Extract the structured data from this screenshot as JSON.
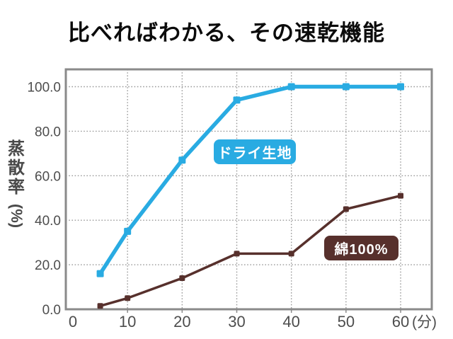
{
  "title": "比べればわかる、その速乾機能",
  "colors": {
    "dry_accent": "#29abe2",
    "cotton_accent": "#57302c",
    "axis_text": "#4d4d4d",
    "plot_border": "#8a8a8a",
    "gridline": "#9a9a9a",
    "title_text": "#0b0b0b",
    "label_text": "#ffffff",
    "background": "#ffffff"
  },
  "y_axis": {
    "label_main": "蒸散率",
    "label_unit": "(%)",
    "tick_labels": [
      "0.0",
      "20.0",
      "40.0",
      "60.0",
      "80.0",
      "100.0"
    ],
    "tick_values": [
      0,
      20,
      40,
      60,
      80,
      100
    ]
  },
  "x_axis": {
    "tick_labels": [
      "0",
      "10",
      "20",
      "30",
      "40",
      "50",
      "60"
    ],
    "tick_values": [
      0,
      10,
      20,
      30,
      40,
      50,
      60
    ],
    "unit": "(分)"
  },
  "chart_data": {
    "type": "line",
    "title": "比べればわかる、その速乾機能",
    "ylabel": "蒸散率(%)",
    "x_unit": "(分)",
    "x": [
      5,
      10,
      20,
      30,
      40,
      50,
      60
    ],
    "series": [
      {
        "name": "ドライ生地",
        "color": "#29abe2",
        "marker": "square",
        "values": [
          16,
          35,
          67,
          94,
          100,
          100,
          100
        ]
      },
      {
        "name": "綿100%",
        "color": "#57302c",
        "marker": "square",
        "values": [
          1.5,
          5,
          14,
          25,
          25,
          45,
          51
        ]
      }
    ],
    "xlim": [
      0,
      65
    ],
    "ylim": [
      0,
      107
    ],
    "grid": true,
    "grid_style": "dotted",
    "legend": "inline-labels"
  }
}
